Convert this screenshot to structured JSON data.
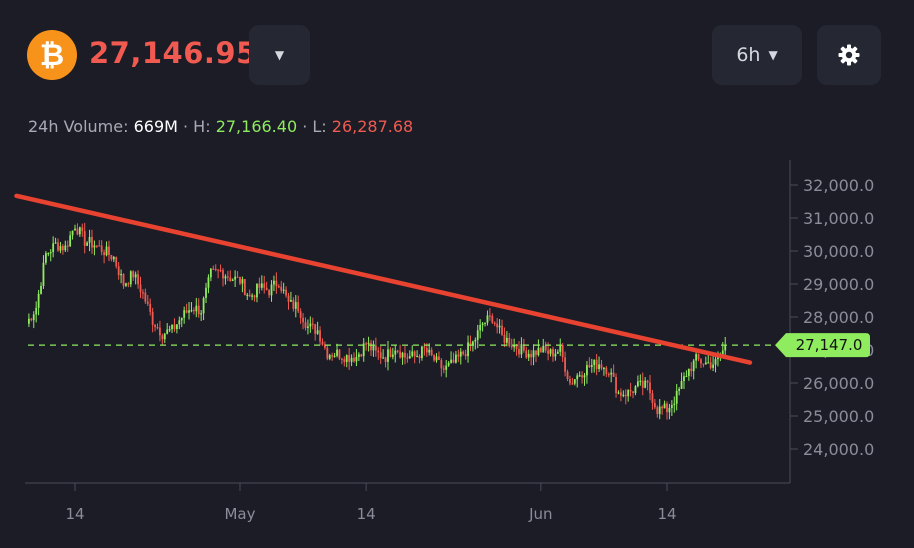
{
  "header": {
    "coin_symbol": "₿",
    "price": "27,146.95",
    "price_color": "#f05a50",
    "dropdown_icon": "caret-down-icon",
    "interval": "6h",
    "settings_icon": "gear-icon"
  },
  "stats": {
    "volume_label": "24h Volume: ",
    "volume": "669M",
    "sep1": " · H: ",
    "high": "27,166.40",
    "sep2": " · L: ",
    "low": "26,287.68"
  },
  "chart_data": {
    "type": "candlestick",
    "title": "",
    "xlabel": "",
    "ylabel": "",
    "up_color": "#8fec5e",
    "down_color": "#f05a50",
    "ylim": [
      23000,
      32700
    ],
    "y_ticks": [
      "24,000.0",
      "25,000.0",
      "26,000.0",
      "27,000.0",
      "28,000.0",
      "29,000.0",
      "30,000.0",
      "31,000.0",
      "32,000.0"
    ],
    "x_ticks": [
      "14",
      "May",
      "14",
      "Jun",
      "14"
    ],
    "current_price_label": "27,147.0",
    "current_price": 27147,
    "trendline": {
      "color": "#e84230",
      "from": [
        "Apr 9",
        31550
      ],
      "to": [
        "Jun 21",
        26800
      ]
    },
    "anchors": [
      [
        "Apr 9",
        27800
      ],
      [
        "Apr 10",
        28300
      ],
      [
        "Apr 11",
        29900
      ],
      [
        "Apr 12",
        30200
      ],
      [
        "Apr 13",
        30100
      ],
      [
        "Apr 14",
        30800
      ],
      [
        "Apr 15",
        30300
      ],
      [
        "Apr 16",
        30200
      ],
      [
        "Apr 17",
        30000
      ],
      [
        "Apr 18",
        29800
      ],
      [
        "Apr 19",
        29000
      ],
      [
        "Apr 20",
        29300
      ],
      [
        "Apr 21",
        28700
      ],
      [
        "Apr 22",
        27900
      ],
      [
        "Apr 23",
        27500
      ],
      [
        "Apr 24",
        27600
      ],
      [
        "Apr 25",
        28000
      ],
      [
        "Apr 26",
        28300
      ],
      [
        "Apr 27",
        28200
      ],
      [
        "Apr 28",
        29300
      ],
      [
        "Apr 29",
        29400
      ],
      [
        "Apr 30",
        29200
      ],
      [
        "May 1",
        29100
      ],
      [
        "May 2",
        28600
      ],
      [
        "May 3",
        28900
      ],
      [
        "May 4",
        28800
      ],
      [
        "May 5",
        29100
      ],
      [
        "May 6",
        28400
      ],
      [
        "May 7",
        28300
      ],
      [
        "May 8",
        27700
      ],
      [
        "May 9",
        27600
      ],
      [
        "May 10",
        26900
      ],
      [
        "May 11",
        26900
      ],
      [
        "May 12",
        26800
      ],
      [
        "May 13",
        26800
      ],
      [
        "May 14",
        27200
      ],
      [
        "May 15",
        26900
      ],
      [
        "May 16",
        26800
      ],
      [
        "May 17",
        27100
      ],
      [
        "May 18",
        26800
      ],
      [
        "May 19",
        26800
      ],
      [
        "May 20",
        27000
      ],
      [
        "May 21",
        26700
      ],
      [
        "May 22",
        26400
      ],
      [
        "May 23",
        26600
      ],
      [
        "May 24",
        26900
      ],
      [
        "May 25",
        27200
      ],
      [
        "May 26",
        27800
      ],
      [
        "May 27",
        28000
      ],
      [
        "May 28",
        27400
      ],
      [
        "May 29",
        27200
      ],
      [
        "May 30",
        27000
      ],
      [
        "May 31",
        26900
      ],
      [
        "Jun 1",
        27000
      ],
      [
        "Jun 2",
        26900
      ],
      [
        "Jun 3",
        27000
      ],
      [
        "Jun 4",
        26000
      ],
      [
        "Jun 5",
        26300
      ],
      [
        "Jun 6",
        26500
      ],
      [
        "Jun 7",
        26600
      ],
      [
        "Jun 8",
        26400
      ],
      [
        "Jun 9",
        25700
      ],
      [
        "Jun 10",
        25700
      ],
      [
        "Jun 11",
        25900
      ],
      [
        "Jun 12",
        25900
      ],
      [
        "Jun 13",
        25200
      ],
      [
        "Jun 14",
        25200
      ],
      [
        "Jun 15",
        25600
      ],
      [
        "Jun 16",
        26300
      ],
      [
        "Jun 17",
        26700
      ],
      [
        "Jun 18",
        26600
      ],
      [
        "Jun 19",
        26600
      ],
      [
        "Jun 20",
        27100
      ]
    ]
  }
}
